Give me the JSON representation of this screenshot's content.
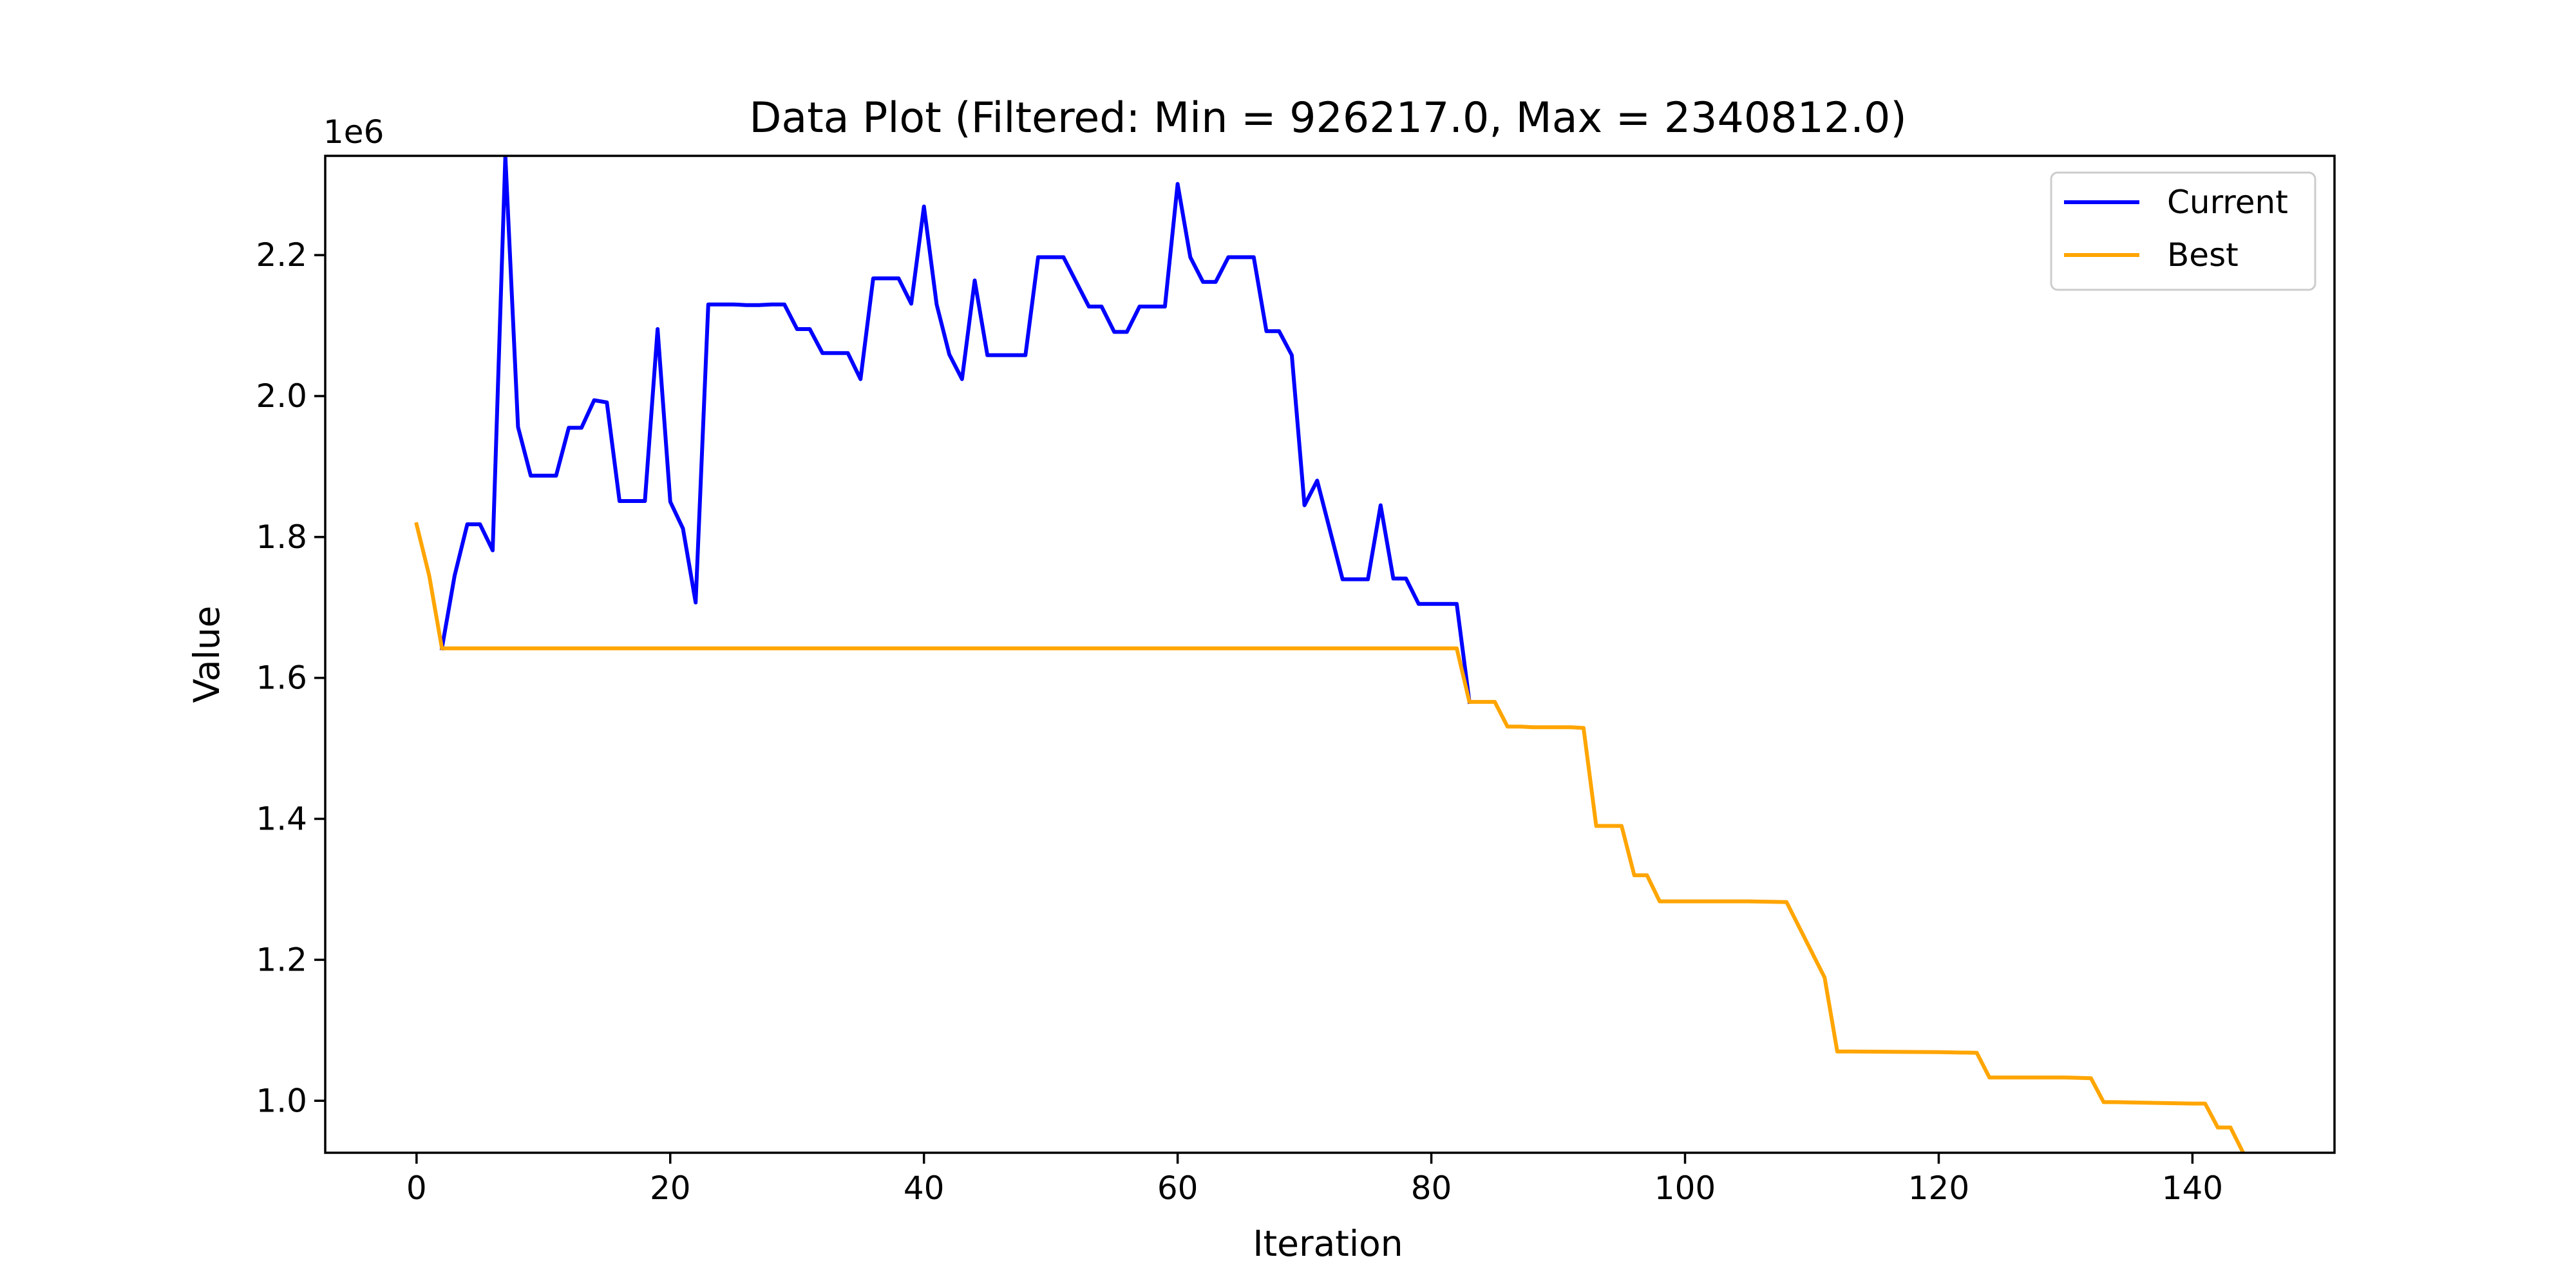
{
  "chart_data": {
    "type": "line",
    "title": "Data Plot (Filtered: Min = 926217.0, Max = 2340812.0)",
    "xlabel": "Iteration",
    "ylabel": "Value",
    "y_offset_label": "1e6",
    "y_scale_factor": 1000000,
    "xlim": [
      -7.2,
      151.2
    ],
    "ylim": [
      926217.0,
      2340812.0
    ],
    "x_ticks": [
      0,
      20,
      40,
      60,
      80,
      100,
      120,
      140
    ],
    "y_ticks": [
      1000000,
      1200000,
      1400000,
      1600000,
      1800000,
      2000000,
      2200000
    ],
    "y_tick_labels": [
      "1.0",
      "1.2",
      "1.4",
      "1.6",
      "1.8",
      "2.0",
      "2.2"
    ],
    "grid": false,
    "legend_position": "top-right",
    "series": [
      {
        "name": "Current",
        "color": "#0000ff",
        "x": [
          2,
          3,
          4,
          5,
          6,
          7,
          8,
          9,
          10,
          11,
          12,
          13,
          14,
          15,
          16,
          17,
          18,
          19,
          20,
          21,
          22,
          23,
          24,
          25,
          26,
          27,
          28,
          29,
          30,
          31,
          32,
          33,
          34,
          35,
          36,
          37,
          38,
          39,
          40,
          41,
          42,
          43,
          44,
          45,
          46,
          47,
          48,
          49,
          50,
          51,
          52,
          53,
          54,
          55,
          56,
          57,
          58,
          59,
          60,
          61,
          62,
          63,
          64,
          65,
          66,
          67,
          68,
          69,
          70,
          71,
          72,
          73,
          74,
          75,
          76,
          77,
          78,
          79,
          80,
          81,
          82,
          83
        ],
        "values": [
          1642000,
          1745000,
          1818000,
          1818000,
          1781000,
          2340812,
          1956000,
          1887000,
          1887000,
          1887000,
          1955000,
          1955000,
          1994000,
          1991000,
          1851000,
          1851000,
          1851000,
          2095000,
          1850000,
          1812000,
          1707000,
          2130000,
          2130000,
          2130000,
          2129000,
          2129000,
          2130000,
          2130000,
          2095000,
          2095000,
          2061000,
          2061000,
          2061000,
          2024000,
          2167000,
          2167000,
          2167000,
          2131000,
          2269000,
          2130000,
          2059000,
          2024000,
          2164000,
          2058000,
          2058000,
          2058000,
          2058000,
          2197000,
          2197000,
          2197000,
          2162000,
          2127000,
          2127000,
          2091000,
          2091000,
          2127000,
          2127000,
          2127000,
          2301000,
          2197000,
          2162000,
          2162000,
          2197000,
          2197000,
          2197000,
          2092000,
          2092000,
          2058000,
          1845000,
          1880000,
          1810000,
          1740000,
          1740000,
          1740000,
          1845000,
          1741000,
          1741000,
          1705000,
          1705000,
          1705000,
          1705000,
          1566000
        ]
      },
      {
        "name": "Best",
        "color": "#ffa500",
        "x": [
          0,
          1,
          2,
          3,
          4,
          5,
          6,
          7,
          8,
          9,
          10,
          20,
          30,
          40,
          50,
          60,
          70,
          80,
          81,
          82,
          83,
          84,
          85,
          86,
          87,
          88,
          89,
          90,
          91,
          92,
          93,
          94,
          95,
          96,
          97,
          98,
          99,
          100,
          105,
          108,
          111,
          112,
          113,
          120,
          123,
          124,
          125,
          130,
          132,
          133,
          134,
          140,
          141,
          142,
          143,
          144
        ],
        "values": [
          1818000,
          1745000,
          1642000,
          1642000,
          1642000,
          1642000,
          1642000,
          1642000,
          1642000,
          1642000,
          1642000,
          1642000,
          1642000,
          1642000,
          1642000,
          1642000,
          1642000,
          1642000,
          1642000,
          1642000,
          1566000,
          1566000,
          1566000,
          1531000,
          1531000,
          1530000,
          1530000,
          1530000,
          1530000,
          1529000,
          1390000,
          1390000,
          1390000,
          1320000,
          1320000,
          1283000,
          1283000,
          1283000,
          1283000,
          1282000,
          1175000,
          1070000,
          1070000,
          1069000,
          1068000,
          1033000,
          1033000,
          1033000,
          1032000,
          998000,
          998000,
          996000,
          996000,
          962000,
          962000,
          926217
        ]
      }
    ]
  }
}
